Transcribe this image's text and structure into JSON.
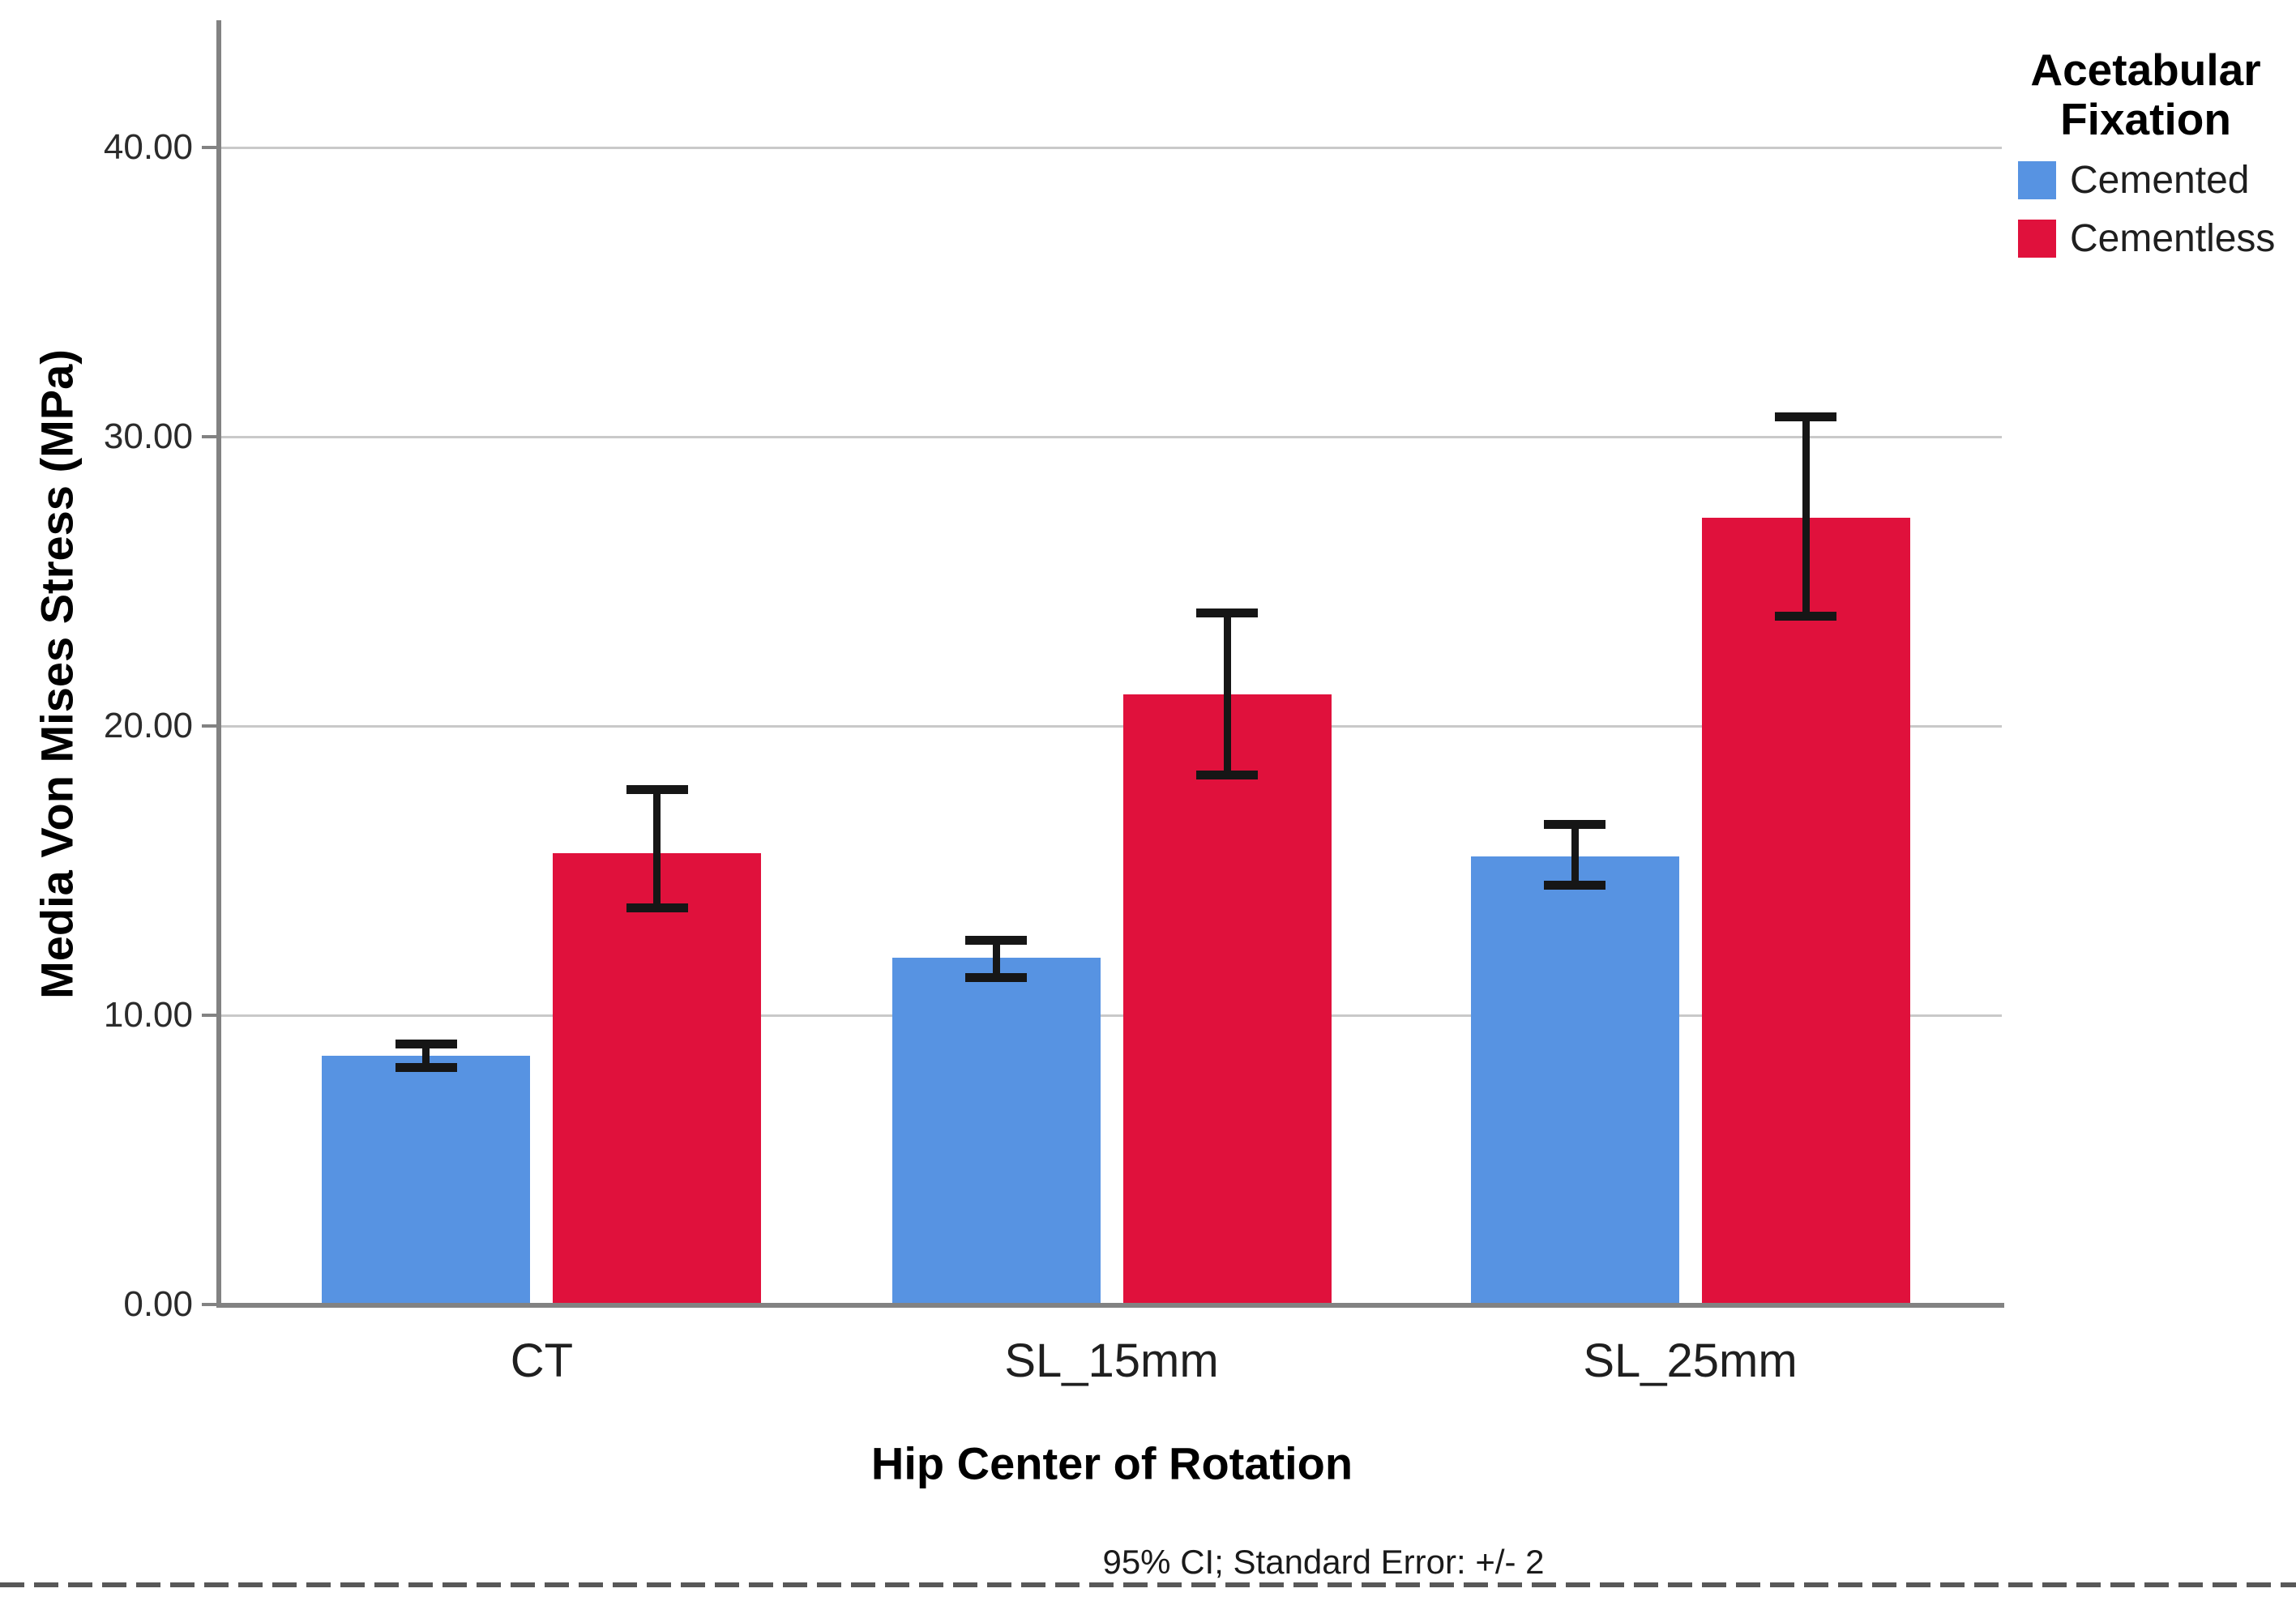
{
  "chart_data": {
    "type": "bar",
    "categories": [
      "CT",
      "SL_15mm",
      "SL_25mm"
    ],
    "series": [
      {
        "name": "Cemented",
        "color": "#5793E2",
        "values": [
          8.6,
          12.0,
          15.5
        ],
        "ci_low": [
          8.2,
          11.3,
          14.5
        ],
        "ci_high": [
          9.0,
          12.6,
          16.6
        ]
      },
      {
        "name": "Cementless",
        "color": "#E0113C",
        "values": [
          15.6,
          21.1,
          27.2
        ],
        "ci_low": [
          13.7,
          18.3,
          23.8
        ],
        "ci_high": [
          17.8,
          23.9,
          30.7
        ]
      }
    ],
    "xlabel": "Hip Center of Rotation",
    "ylabel": "Media Von Mises Stress (MPa)",
    "ylim": [
      0,
      44.4
    ],
    "yticks": [
      0,
      10,
      20,
      30,
      40
    ],
    "ytick_labels": [
      "0.00",
      "10.00",
      "20.00",
      "30.00",
      "40.00"
    ],
    "grid": true,
    "legend_title": "Acetabular Fixation",
    "legend_position": "top-right",
    "caption": "95% CI; Standard Error: +/- 2",
    "error_bar_color": "#161616",
    "gridline_color": "#c9c9c9",
    "axis_color": "#828282"
  }
}
